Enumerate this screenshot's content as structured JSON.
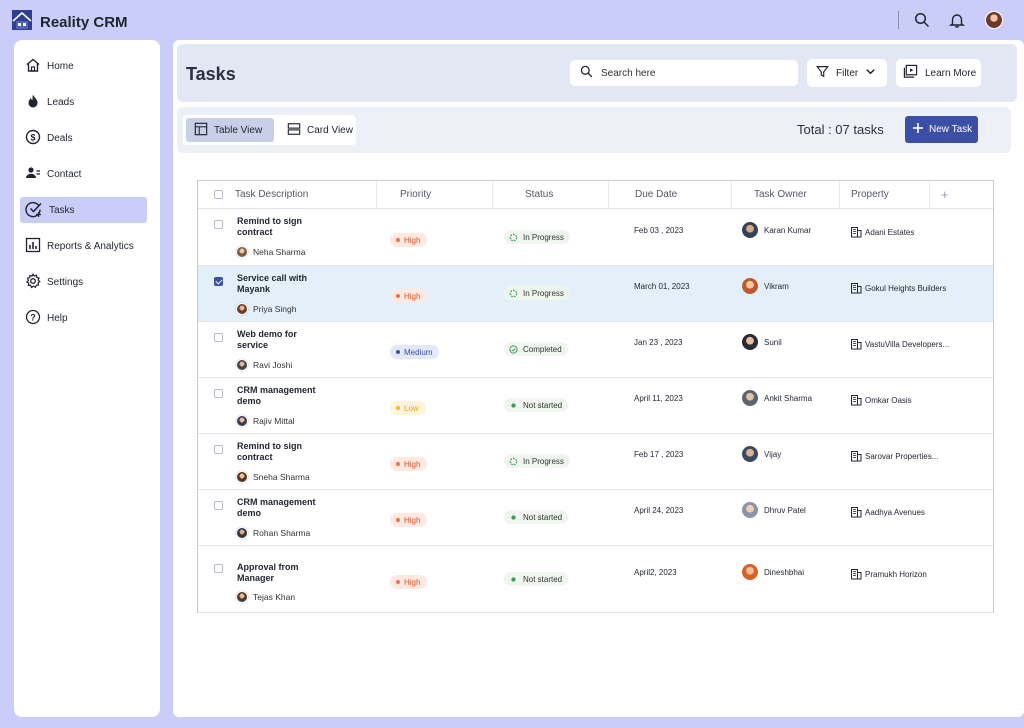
{
  "app": {
    "name": "Reality CRM"
  },
  "colors": {
    "accent": "#3c4fa6",
    "background": "#c9cdf7",
    "selected_row": "#e3f0fa",
    "high": "#e8744d",
    "medium": "#3c4fa6",
    "low": "#f5b731"
  },
  "topbar": {
    "icons": [
      "search-icon",
      "bell-icon",
      "user-avatar"
    ]
  },
  "sidebar": {
    "items": [
      {
        "label": "Home",
        "icon": "home-icon"
      },
      {
        "label": "Leads",
        "icon": "flame-icon"
      },
      {
        "label": "Deals",
        "icon": "dollar-icon"
      },
      {
        "label": "Contact",
        "icon": "contact-icon"
      },
      {
        "label": "Tasks",
        "icon": "task-check-icon",
        "active": true
      },
      {
        "label": "Reports & Analytics",
        "icon": "chart-icon"
      },
      {
        "label": "Settings",
        "icon": "gear-icon"
      },
      {
        "label": "Help",
        "icon": "help-icon"
      }
    ]
  },
  "header": {
    "title": "Tasks",
    "search_placeholder": "Search here",
    "filter_label": "Filter",
    "learn_more_label": "Learn More"
  },
  "toolbar": {
    "table_view_label": "Table View",
    "card_view_label": "Card View",
    "total_label": "Total : 07 tasks",
    "new_task_label": "New Task"
  },
  "table": {
    "columns": [
      "Task Description",
      "Priority",
      "Status",
      "Due Date",
      "Task Owner",
      "Property"
    ],
    "add_column_symbol": "+",
    "rows": [
      {
        "title": "Remind to sign contract",
        "assignee": "Neha Sharma",
        "priority": "High",
        "status": "In Progress",
        "due": "Feb 03 , 2023",
        "owner": "Karan Kumar",
        "property": "Adani Estates",
        "selected": false
      },
      {
        "title": "Service call with Mayank",
        "assignee": "Priya Singh",
        "priority": "High",
        "status": "In Progress",
        "due": "March 01, 2023",
        "owner": "Vikram",
        "property": "Gokul Heights Builders",
        "selected": true
      },
      {
        "title": "Web demo for service",
        "assignee": "Ravi Joshi",
        "priority": "Medium",
        "status": "Completed",
        "due": "Jan 23 , 2023",
        "owner": "Sunil",
        "property": "VastuVilla Developers...",
        "selected": false
      },
      {
        "title": "CRM management demo",
        "assignee": "Rajiv Mittal",
        "priority": "Low",
        "status": "Not started",
        "due": "April 11, 2023",
        "owner": "Ankit Sharma",
        "property": "Omkar Oasis",
        "selected": false
      },
      {
        "title": "Remind to sign contract",
        "assignee": "Sneha Sharma",
        "priority": "High",
        "status": "In Progress",
        "due": "Feb 17 , 2023",
        "owner": "Vijay",
        "property": "Sarovar Properties...",
        "selected": false
      },
      {
        "title": "CRM management demo",
        "assignee": "Rohan Sharma",
        "priority": "High",
        "status": "Not started",
        "due": "April 24, 2023",
        "owner": "Dhruv Patel",
        "property": "Aadhya Avenues",
        "selected": false
      },
      {
        "title": "Approval from Manager",
        "assignee": "Tejas Khan",
        "priority": "High",
        "status": "Not started",
        "due": "April2, 2023",
        "owner": "Dineshbhai",
        "property": "Pramukh Horizon",
        "selected": false
      }
    ]
  }
}
